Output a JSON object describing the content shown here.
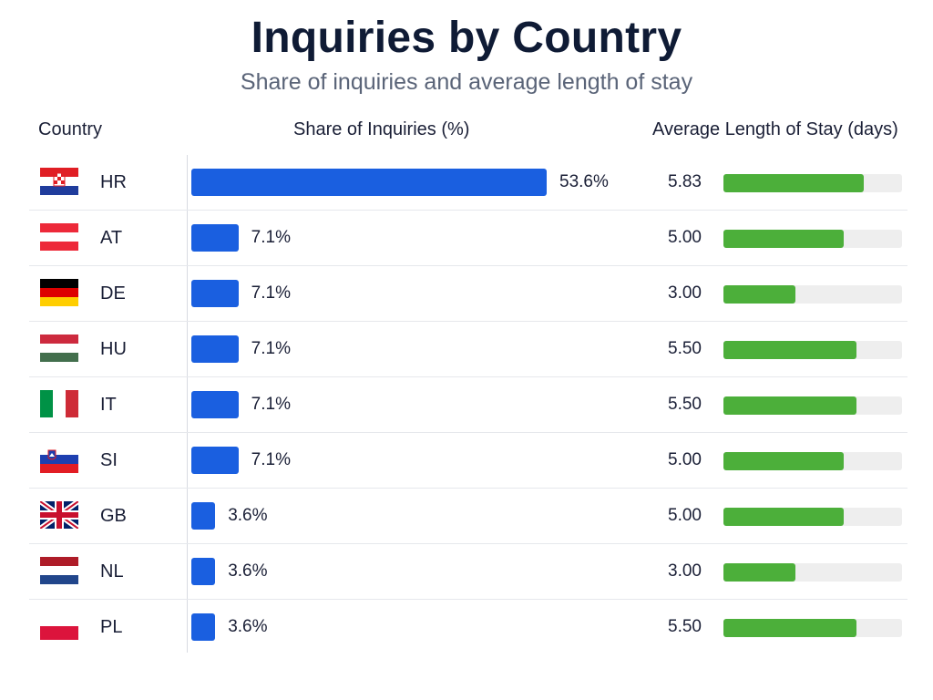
{
  "chart_data": {
    "type": "bar",
    "title": "Inquiries by Country",
    "subtitle": "Share of inquiries and average length of stay",
    "columns": {
      "country": "Country",
      "share": "Share of Inquiries (%)",
      "stay": "Average Length of Stay (days)"
    },
    "categories": [
      "HR",
      "AT",
      "DE",
      "HU",
      "IT",
      "SI",
      "GB",
      "NL",
      "PL"
    ],
    "series": [
      {
        "name": "Share of Inquiries (%)",
        "values": [
          53.6,
          7.1,
          7.1,
          7.1,
          7.1,
          7.1,
          3.6,
          3.6,
          3.6
        ],
        "labels": [
          "53.6%",
          "7.1%",
          "7.1%",
          "7.1%",
          "7.1%",
          "7.1%",
          "3.6%",
          "3.6%",
          "3.6%"
        ],
        "color": "#1a5fe0"
      },
      {
        "name": "Average Length of Stay (days)",
        "values": [
          5.83,
          5.0,
          3.0,
          5.5,
          5.5,
          5.0,
          5.0,
          3.0,
          5.5
        ],
        "labels": [
          "5.83",
          "5.00",
          "3.00",
          "5.50",
          "5.50",
          "5.00",
          "5.00",
          "3.00",
          "5.50"
        ],
        "color": "#4caf3a",
        "xlim": [
          0,
          7.4
        ]
      }
    ],
    "flags": [
      "flag-hr-icon",
      "flag-at-icon",
      "flag-de-icon",
      "flag-hu-icon",
      "flag-it-icon",
      "flag-si-icon",
      "flag-gb-icon",
      "flag-nl-icon",
      "flag-pl-icon"
    ],
    "grid": false,
    "legend": "none"
  }
}
